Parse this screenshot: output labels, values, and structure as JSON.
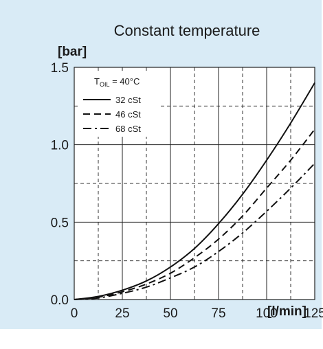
{
  "chart_data": {
    "type": "line",
    "title": "Constant temperature",
    "ylabel": "[bar]",
    "xlabel": "[l/min]",
    "xlim": [
      0,
      125
    ],
    "ylim": [
      0,
      1.5
    ],
    "x_ticks": [
      "0",
      "25",
      "50",
      "75",
      "100",
      "125"
    ],
    "y_ticks": [
      "0.0",
      "0.5",
      "1.0",
      "1.5"
    ],
    "x_tick_values": [
      0,
      25,
      50,
      75,
      100,
      125
    ],
    "y_tick_values": [
      0,
      0.5,
      1.0,
      1.5
    ],
    "x_minor_grid": [
      12.5,
      37.5,
      62.5,
      87.5,
      112.5
    ],
    "y_minor_grid": [
      0.25,
      0.75,
      1.25
    ],
    "grid": true,
    "legend_position": "top-left",
    "legend_title": {
      "main": "T",
      "sub": "OIL",
      "rest": " = 40°C"
    },
    "x": [
      0,
      12.5,
      25,
      37.5,
      50,
      62.5,
      75,
      87.5,
      100,
      112.5,
      125
    ],
    "series": [
      {
        "name": "32 cSt",
        "style": "solid",
        "values": [
          0,
          0.02,
          0.06,
          0.12,
          0.21,
          0.33,
          0.49,
          0.68,
          0.9,
          1.14,
          1.4
        ]
      },
      {
        "name": "46 cSt",
        "style": "dashed",
        "values": [
          0,
          0.015,
          0.05,
          0.1,
          0.17,
          0.27,
          0.39,
          0.54,
          0.72,
          0.9,
          1.1
        ]
      },
      {
        "name": "68 cSt",
        "style": "dashdot",
        "values": [
          0,
          0.01,
          0.04,
          0.08,
          0.14,
          0.21,
          0.31,
          0.43,
          0.57,
          0.72,
          0.88
        ]
      }
    ]
  }
}
